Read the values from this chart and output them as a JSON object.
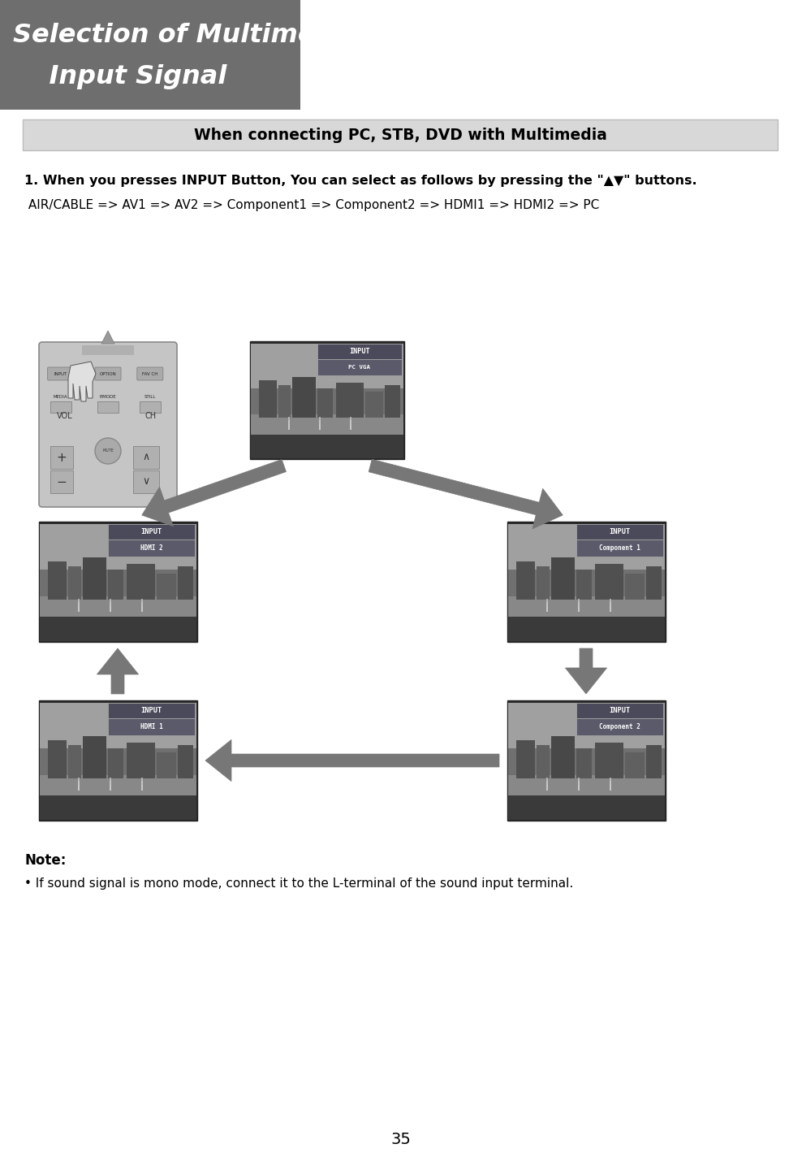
{
  "title_line1": "Selection of Multimedia",
  "title_line2": "    Input Signal",
  "title_bg_color": "#6e6e6e",
  "title_text_color": "#ffffff",
  "section_header": "When connecting PC, STB, DVD with Multimedia",
  "section_header_bg": "#d8d8d8",
  "section_header_border": "#bbbbbb",
  "instruction_bold": "1. When you presses INPUT Button, You can select as follows by pressing the \"▲▼\" buttons.",
  "instruction_normal": " AIR/CABLE => AV1 => AV2 => Component1 => Component2 => HDMI1 => HDMI2 => PC",
  "note_title": "Note:",
  "note_text": "• If sound signal is mono mode, connect it to the L-terminal of the sound input terminal.",
  "page_number": "35",
  "arrow_color": "#777777",
  "bg_color": "#ffffff"
}
